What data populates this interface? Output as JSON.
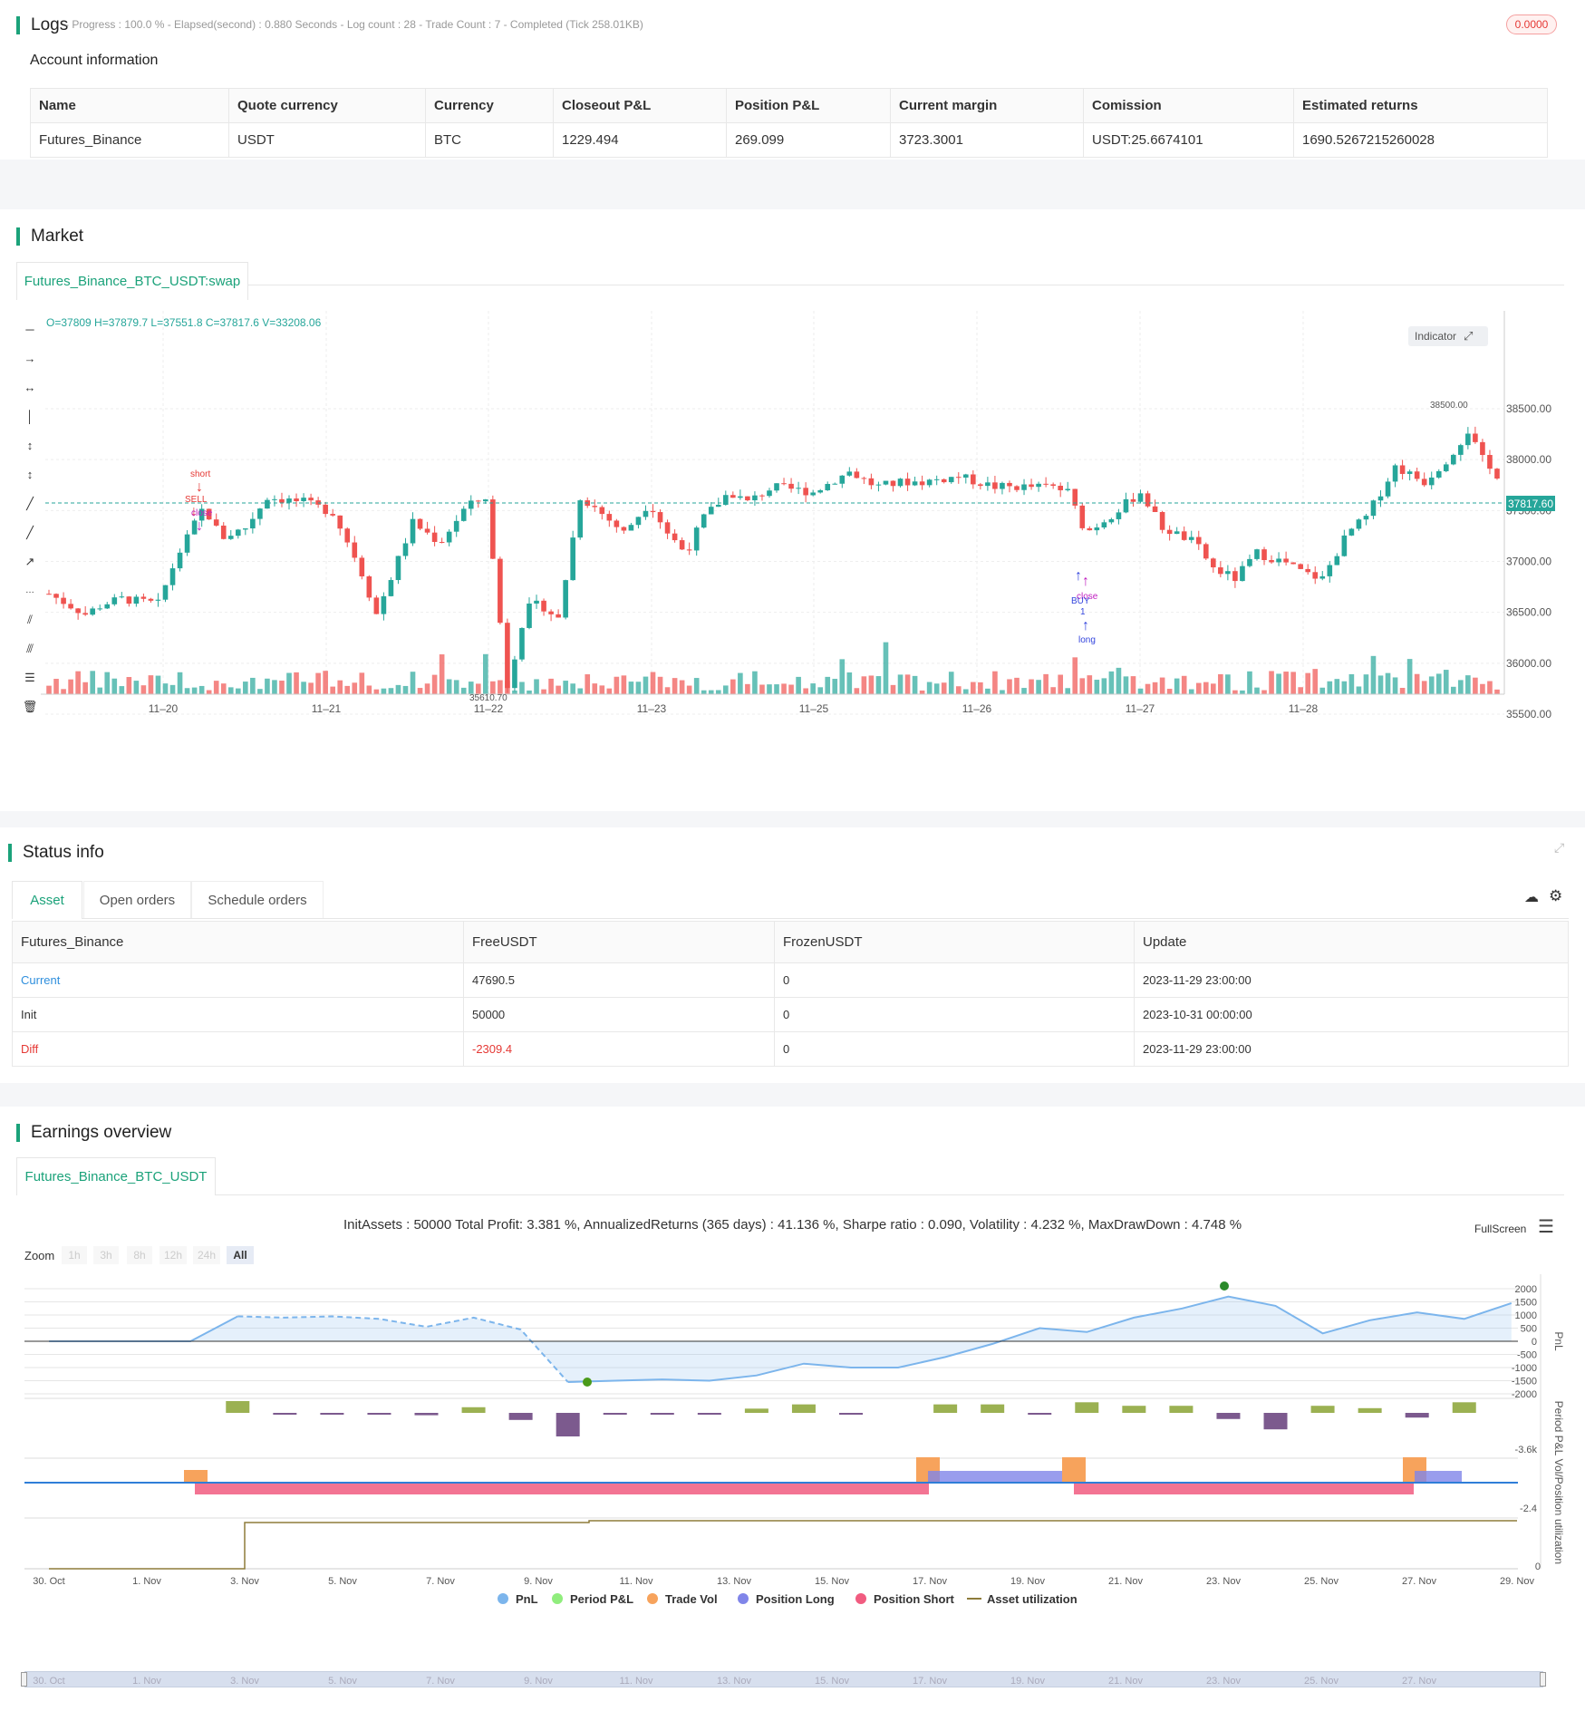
{
  "logs": {
    "title": "Logs",
    "progress": "- Progress : 100.0 % - Elapsed(second) : 0.880  Seconds - Log count : 28 - Trade Count : 7 - Completed (Tick 258.01KB)",
    "badge": "0.0000"
  },
  "account": {
    "title": "Account information",
    "headers": [
      "Name",
      "Quote currency",
      "Currency",
      "Closeout P&L",
      "Position P&L",
      "Current margin",
      "Comission",
      "Estimated returns"
    ],
    "row": [
      "Futures_Binance",
      "USDT",
      "BTC",
      "1229.494",
      "269.099",
      "3723.3001",
      "USDT:25.6674101",
      "1690.5267215260028"
    ]
  },
  "market": {
    "title": "Market",
    "tab": "Futures_Binance_BTC_USDT:swap",
    "ohlc": "O=37809 H=37879.7 L=37551.8 C=37817.6 V=33208.06",
    "indicator_btn": "Indicator",
    "price_ticks": [
      "38500.00",
      "38000.00",
      "37500.00",
      "37000.00",
      "36500.00",
      "36000.00",
      "35500.00"
    ],
    "date_ticks": [
      "11–20",
      "11–21",
      "11–22",
      "11–23",
      "11–25",
      "11–26",
      "11–27",
      "11–28"
    ],
    "last_price": "37817.60",
    "high_label": "38500.00",
    "low_label": "35610.70",
    "signals": {
      "short": "short",
      "sell": "SELL",
      "close1": "close",
      "buy": "BUY",
      "close2": "close",
      "long": "long",
      "one": "1"
    },
    "colors": {
      "up": "#26a69a",
      "down": "#ef5350",
      "accent": "#1ba27a"
    }
  },
  "status": {
    "title": "Status info",
    "tabs": [
      "Asset",
      "Open orders",
      "Schedule orders"
    ],
    "headers": [
      "Futures_Binance",
      "FreeUSDT",
      "FrozenUSDT",
      "Update"
    ],
    "rows": [
      [
        "Current",
        "47690.5",
        "0",
        "2023-11-29 23:00:00"
      ],
      [
        "Init",
        "50000",
        "0",
        "2023-10-31 00:00:00"
      ],
      [
        "Diff",
        "-2309.4",
        "0",
        "2023-11-29 23:00:00"
      ]
    ]
  },
  "earnings": {
    "title": "Earnings overview",
    "tab": "Futures_Binance_BTC_USDT",
    "summary": "InitAssets : 50000 Total Profit: 3.381 %, AnnualizedReturns (365 days) : 41.136 %, Sharpe ratio : 0.090, Volatility : 4.232 %, MaxDrawDown : 4.748 %",
    "fullscreen": "FullScreen",
    "zoom_label": "Zoom",
    "zoom_options": [
      "1h",
      "3h",
      "8h",
      "12h",
      "24h",
      "All"
    ],
    "pnl_ticks": [
      "2000",
      "1500",
      "1000",
      "500",
      "0",
      "-500",
      "-1000",
      "-1500",
      "-2000"
    ],
    "period_tick": "-3.6k",
    "vol_tick": "-2.4",
    "util_tick": "0",
    "axis_titles": [
      "PnL",
      "Period P&L",
      "Vol/Position",
      "utilization"
    ],
    "x_ticks": [
      "30. Oct",
      "1. Nov",
      "3. Nov",
      "5. Nov",
      "7. Nov",
      "9. Nov",
      "11. Nov",
      "13. Nov",
      "15. Nov",
      "17. Nov",
      "19. Nov",
      "21. Nov",
      "23. Nov",
      "25. Nov",
      "27. Nov",
      "29. Nov"
    ],
    "nav_ticks": [
      "30. Oct",
      "1. Nov",
      "3. Nov",
      "5. Nov",
      "7. Nov",
      "9. Nov",
      "11. Nov",
      "13. Nov",
      "15. Nov",
      "17. Nov",
      "19. Nov",
      "21. Nov",
      "23. Nov",
      "25. Nov",
      "27. Nov"
    ],
    "legend": [
      "PnL",
      "Period P&L",
      "Trade Vol",
      "Position Long",
      "Position Short",
      "Asset utilization"
    ],
    "legend_colors": [
      "#7cb5ec",
      "#90ed7d",
      "#f7a35c",
      "#8085e9",
      "#f15c80",
      "#8d7b3a"
    ]
  }
}
